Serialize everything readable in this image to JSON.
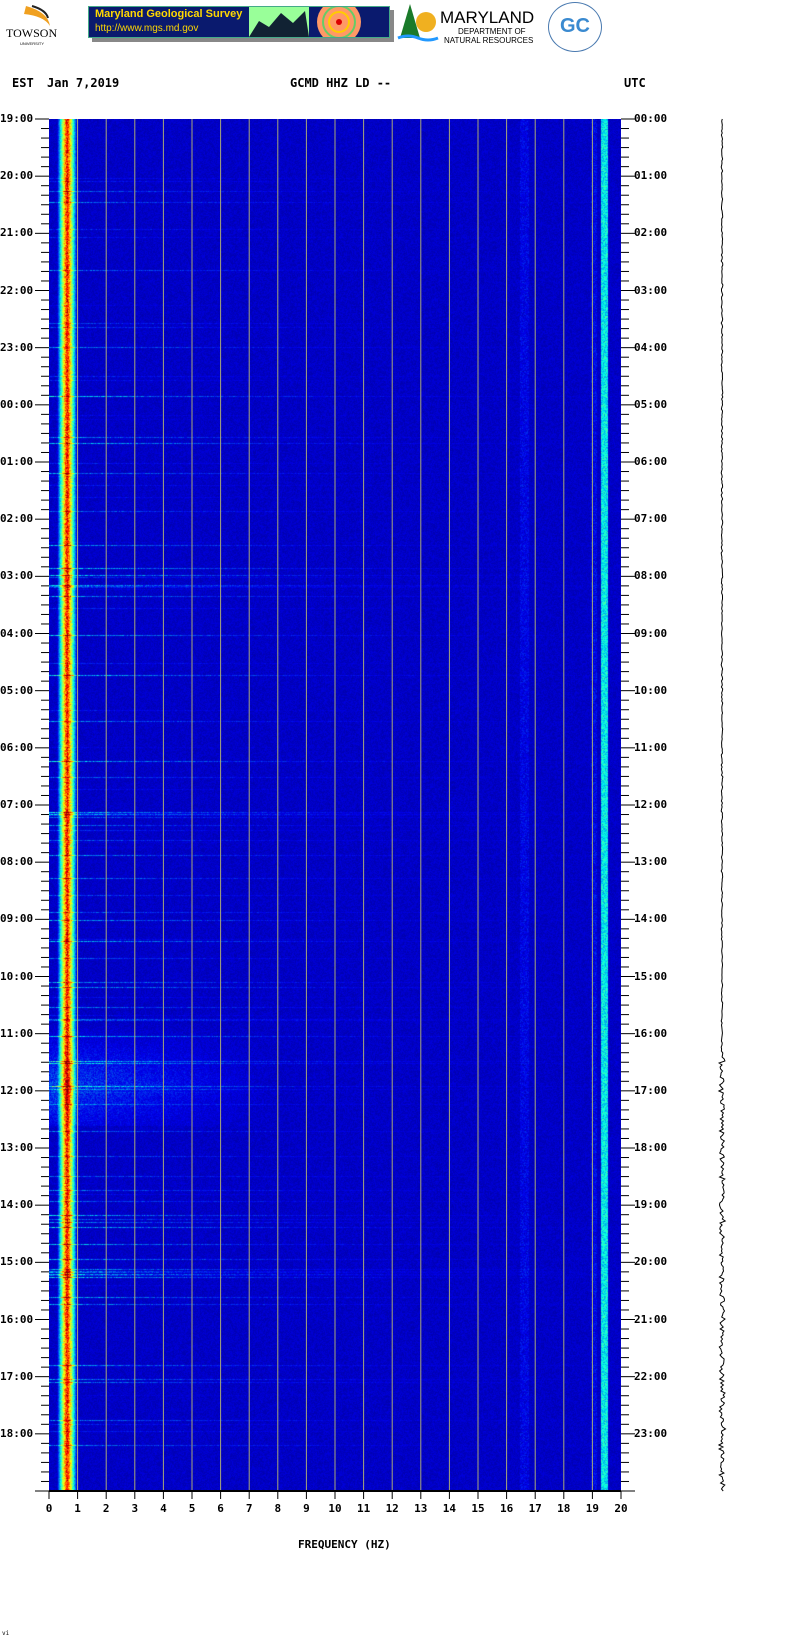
{
  "logos": {
    "towson": "TOWSON",
    "towson_sub": "UNIVERSITY",
    "mgs_title": "Maryland Geological Survey",
    "mgs_url": "http://www.mgs.md.gov",
    "dnr_title": "MARYLAND",
    "dnr_sub1": "DEPARTMENT OF",
    "dnr_sub2": "NATURAL RESOURCES",
    "gc": "GC"
  },
  "header": {
    "left_zone": "EST",
    "date": "Jan 7,2019",
    "station": "GCMD HHZ LD --",
    "right_zone": "UTC"
  },
  "footer_mark": "vi",
  "chart_data": {
    "type": "heatmap",
    "title": "GCMD HHZ LD --",
    "xlabel": "FREQUENCY (HZ)",
    "xlim": [
      0,
      20
    ],
    "x_ticks": [
      "0",
      "1",
      "2",
      "3",
      "4",
      "5",
      "6",
      "7",
      "8",
      "9",
      "10",
      "11",
      "12",
      "13",
      "14",
      "15",
      "16",
      "17",
      "18",
      "19",
      "20"
    ],
    "grid": "vertical lines at each 1 Hz",
    "y_left_ticks": [
      "19:00",
      "20:00",
      "21:00",
      "22:00",
      "23:00",
      "00:00",
      "01:00",
      "02:00",
      "03:00",
      "04:00",
      "05:00",
      "06:00",
      "07:00",
      "08:00",
      "09:00",
      "10:00",
      "11:00",
      "12:00",
      "13:00",
      "14:00",
      "15:00",
      "16:00",
      "17:00",
      "18:00"
    ],
    "y_right_ticks": [
      "00:00",
      "01:00",
      "02:00",
      "03:00",
      "04:00",
      "05:00",
      "06:00",
      "07:00",
      "08:00",
      "09:00",
      "10:00",
      "11:00",
      "12:00",
      "13:00",
      "14:00",
      "15:00",
      "16:00",
      "17:00",
      "18:00",
      "19:00",
      "20:00",
      "21:00",
      "22:00",
      "23:00"
    ],
    "colormap": "jet",
    "features": {
      "dominant_band_hz": [
        0.5,
        0.9
      ],
      "persistent_lines_hz": [
        16.6,
        19.4
      ],
      "broadband_noise_est": [
        "11:00",
        "12:30"
      ]
    },
    "colors": {
      "background": "#0a14a8",
      "grid": "#a8a878"
    }
  }
}
